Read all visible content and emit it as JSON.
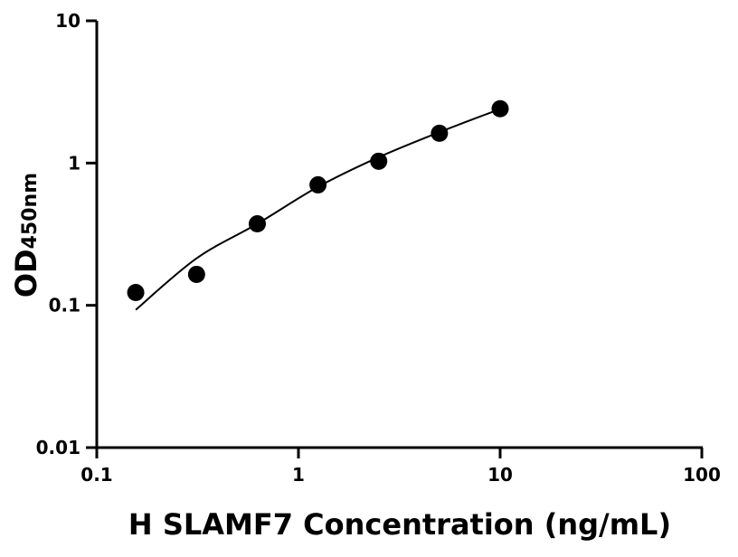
{
  "chart_data": {
    "type": "scatter",
    "title": "",
    "xlabel": "H SLAMF7 Concentration (ng/mL)",
    "ylabel": "OD",
    "ylabel_subscript": "450nm",
    "xscale": "log",
    "yscale": "log",
    "xlim": [
      0.1,
      100
    ],
    "ylim": [
      0.01,
      10
    ],
    "xticks": [
      "0.1",
      "1",
      "10",
      "100"
    ],
    "yticks": [
      "0.01",
      "0.1",
      "1",
      "10"
    ],
    "grid": false,
    "legend": "none",
    "colors": {
      "points": "#000000",
      "curve": "#000000"
    },
    "points": {
      "x": [
        0.156,
        0.3125,
        0.625,
        1.25,
        2.5,
        5,
        10
      ],
      "y": [
        0.123,
        0.165,
        0.374,
        0.703,
        1.03,
        1.62,
        2.41
      ]
    },
    "fit_curve": {
      "x": [
        0.156,
        0.3125,
        0.625,
        1.25,
        2.5,
        5,
        10
      ],
      "y": [
        0.093,
        0.214,
        0.374,
        0.68,
        1.1,
        1.65,
        2.4
      ]
    }
  }
}
